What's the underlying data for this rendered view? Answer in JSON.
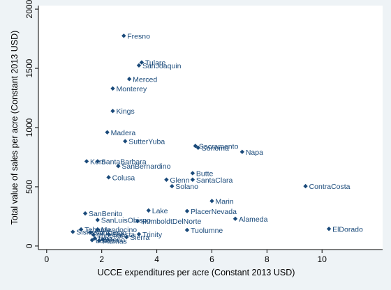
{
  "chart_data": {
    "type": "scatter",
    "title": "",
    "xlabel": "UCCE expenditures per acre (Constant 2013 USD)",
    "ylabel": "Total value of sales per acre (Constant 2013 USD)",
    "xlim": [
      -0.3,
      12.2
    ],
    "ylim": [
      -30,
      2030
    ],
    "xticks": [
      0,
      2,
      4,
      6,
      8,
      10
    ],
    "yticks": [
      0,
      500,
      1000,
      1500,
      2000
    ],
    "grid": false,
    "marker_color": "#1a4a7a",
    "points": [
      {
        "label": "Fresno",
        "x": 2.8,
        "y": 1775
      },
      {
        "label": "Tulare",
        "x": 3.45,
        "y": 1550
      },
      {
        "label": "SanJoaquin",
        "x": 3.35,
        "y": 1525
      },
      {
        "label": "Merced",
        "x": 3.0,
        "y": 1410
      },
      {
        "label": "Monterey",
        "x": 2.4,
        "y": 1330
      },
      {
        "label": "Kings",
        "x": 2.4,
        "y": 1140
      },
      {
        "label": "Madera",
        "x": 2.2,
        "y": 960
      },
      {
        "label": "SutterYuba",
        "x": 2.85,
        "y": 885
      },
      {
        "label": "Sacramento",
        "x": 5.4,
        "y": 845
      },
      {
        "label": "Sonoma",
        "x": 5.5,
        "y": 830
      },
      {
        "label": "Napa",
        "x": 7.1,
        "y": 795
      },
      {
        "label": "Kern",
        "x": 1.45,
        "y": 715
      },
      {
        "label": "SantaBarbara",
        "x": 1.85,
        "y": 715
      },
      {
        "label": "SanBernardino",
        "x": 2.6,
        "y": 675
      },
      {
        "label": "Butte",
        "x": 5.3,
        "y": 615
      },
      {
        "label": "Colusa",
        "x": 2.25,
        "y": 580
      },
      {
        "label": "Glenn",
        "x": 4.35,
        "y": 560
      },
      {
        "label": "SantaClara",
        "x": 5.3,
        "y": 560
      },
      {
        "label": "Solano",
        "x": 4.55,
        "y": 505
      },
      {
        "label": "ContraCosta",
        "x": 9.4,
        "y": 505
      },
      {
        "label": "Marin",
        "x": 6.0,
        "y": 380
      },
      {
        "label": "Lake",
        "x": 3.7,
        "y": 300
      },
      {
        "label": "PlacerNevada",
        "x": 5.1,
        "y": 295
      },
      {
        "label": "SanBenito",
        "x": 1.4,
        "y": 275
      },
      {
        "label": "Alameda",
        "x": 6.85,
        "y": 230
      },
      {
        "label": "SanLuisObispo",
        "x": 1.85,
        "y": 220
      },
      {
        "label": "HumboldtDelNorte",
        "x": 3.3,
        "y": 210
      },
      {
        "label": "ElDorado",
        "x": 10.25,
        "y": 145
      },
      {
        "label": "Tuolumne",
        "x": 5.1,
        "y": 135
      },
      {
        "label": "Tehama",
        "x": 1.25,
        "y": 140
      },
      {
        "label": "Mendocino",
        "x": 1.85,
        "y": 140
      },
      {
        "label": "Siskiyou",
        "x": 0.95,
        "y": 120
      },
      {
        "label": "SanDiego",
        "x": 1.6,
        "y": 115
      },
      {
        "label": "Imperial",
        "x": 1.7,
        "y": 95
      },
      {
        "label": "Shasta",
        "x": 2.25,
        "y": 100
      },
      {
        "label": "Trinity",
        "x": 3.35,
        "y": 100
      },
      {
        "label": "Inyo",
        "x": 1.75,
        "y": 65
      },
      {
        "label": "Mono",
        "x": 2.05,
        "y": 55
      },
      {
        "label": "Sierra",
        "x": 2.9,
        "y": 75
      },
      {
        "label": "Lassen",
        "x": 1.65,
        "y": 50
      },
      {
        "label": "Plumas",
        "x": 1.9,
        "y": 45
      }
    ]
  }
}
